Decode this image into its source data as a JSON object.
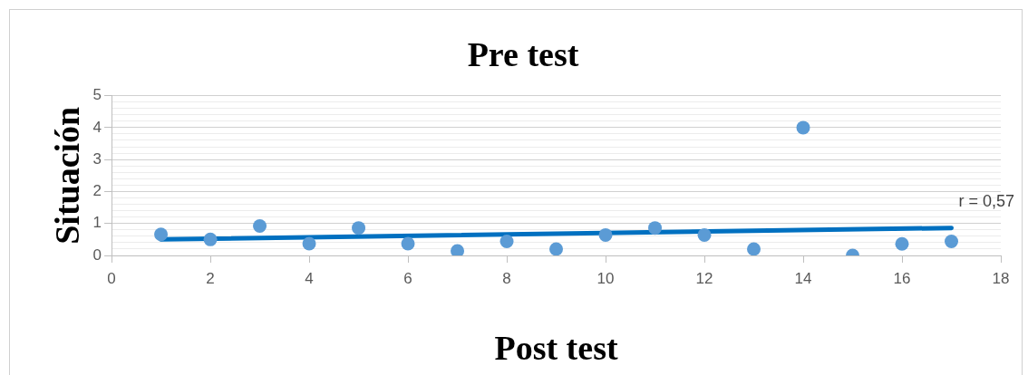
{
  "chart_data": {
    "type": "scatter",
    "title": "Pre test",
    "xlabel": "Post test",
    "ylabel": "Situación",
    "x": [
      1,
      2,
      3,
      4,
      5,
      6,
      7,
      8,
      9,
      10,
      11,
      12,
      13,
      14,
      15,
      16,
      17
    ],
    "series": [
      {
        "type": "scatter",
        "marker": "circle",
        "color": "#5b9bd5",
        "values": [
          0.66,
          0.5,
          0.92,
          0.37,
          0.86,
          0.37,
          0.14,
          0.44,
          0.2,
          0.64,
          0.86,
          0.64,
          0.2,
          4.0,
          0,
          0.36,
          0.44
        ]
      },
      {
        "type": "line",
        "marker": "none",
        "color": "#0070c0",
        "x": [
          1,
          17
        ],
        "values": [
          0.5,
          0.86
        ]
      }
    ],
    "annotations": [
      "r = 0,57"
    ],
    "xlim": [
      0,
      18
    ],
    "xticks": [
      0,
      2,
      4,
      6,
      8,
      10,
      12,
      14,
      16,
      18
    ],
    "ylim": [
      0,
      5
    ],
    "yticks": [
      0,
      {
        "value": 0.2,
        "label": null
      },
      {
        "value": 0.4,
        "label": null
      },
      {
        "value": 0.6,
        "label": null
      },
      {
        "value": 0.8,
        "label": null
      },
      1,
      {
        "value": 1.2,
        "label": null
      },
      {
        "value": 1.4,
        "label": null
      },
      {
        "value": 1.6,
        "label": null
      },
      {
        "value": 1.8,
        "label": null
      },
      2,
      {
        "value": 2.2,
        "label": null
      },
      {
        "value": 2.4,
        "label": null
      },
      {
        "value": 2.6,
        "label": null
      },
      {
        "value": 2.8,
        "label": null
      },
      3,
      {
        "value": 3.2,
        "label": null
      },
      {
        "value": 3.4,
        "label": null
      },
      {
        "value": 3.6,
        "label": null
      },
      {
        "value": 3.8,
        "label": null
      },
      4,
      {
        "value": 4.2,
        "label": null
      },
      {
        "value": 4.4,
        "label": null
      },
      {
        "value": 4.6,
        "label": null
      },
      {
        "value": 4.8,
        "label": null
      },
      5
    ],
    "grid": "y",
    "legend": false
  }
}
